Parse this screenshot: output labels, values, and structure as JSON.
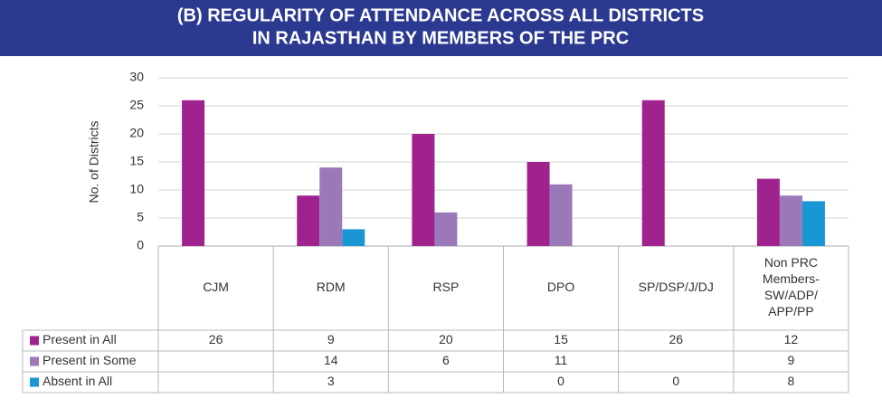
{
  "chart_data": {
    "type": "bar",
    "title": "(B) REGULARITY OF ATTENDANCE ACROSS ALL DISTRICTS\nIN RAJASTHAN BY MEMBERS OF THE PRC",
    "y_label": "No. of Districts",
    "categories": [
      "CJM",
      "RDM",
      "RSP",
      "DPO",
      "SP/DSP/J/DJ",
      "Non PRC\nMembers-\nSW/ADP/\nAPP/PP"
    ],
    "series": [
      {
        "name": "Present in All",
        "color": "#a0228e",
        "values": [
          26,
          9,
          20,
          15,
          26,
          12
        ]
      },
      {
        "name": "Present in Some",
        "color": "#9b78b7",
        "values": [
          null,
          14,
          6,
          11,
          null,
          9
        ]
      },
      {
        "name": "Absent in All",
        "color": "#1a96d4",
        "values": [
          null,
          3,
          null,
          0,
          0,
          8
        ]
      }
    ],
    "ylim": [
      0,
      30
    ],
    "yticks": [
      0,
      5,
      10,
      15,
      20,
      25,
      30
    ],
    "grid": true
  }
}
